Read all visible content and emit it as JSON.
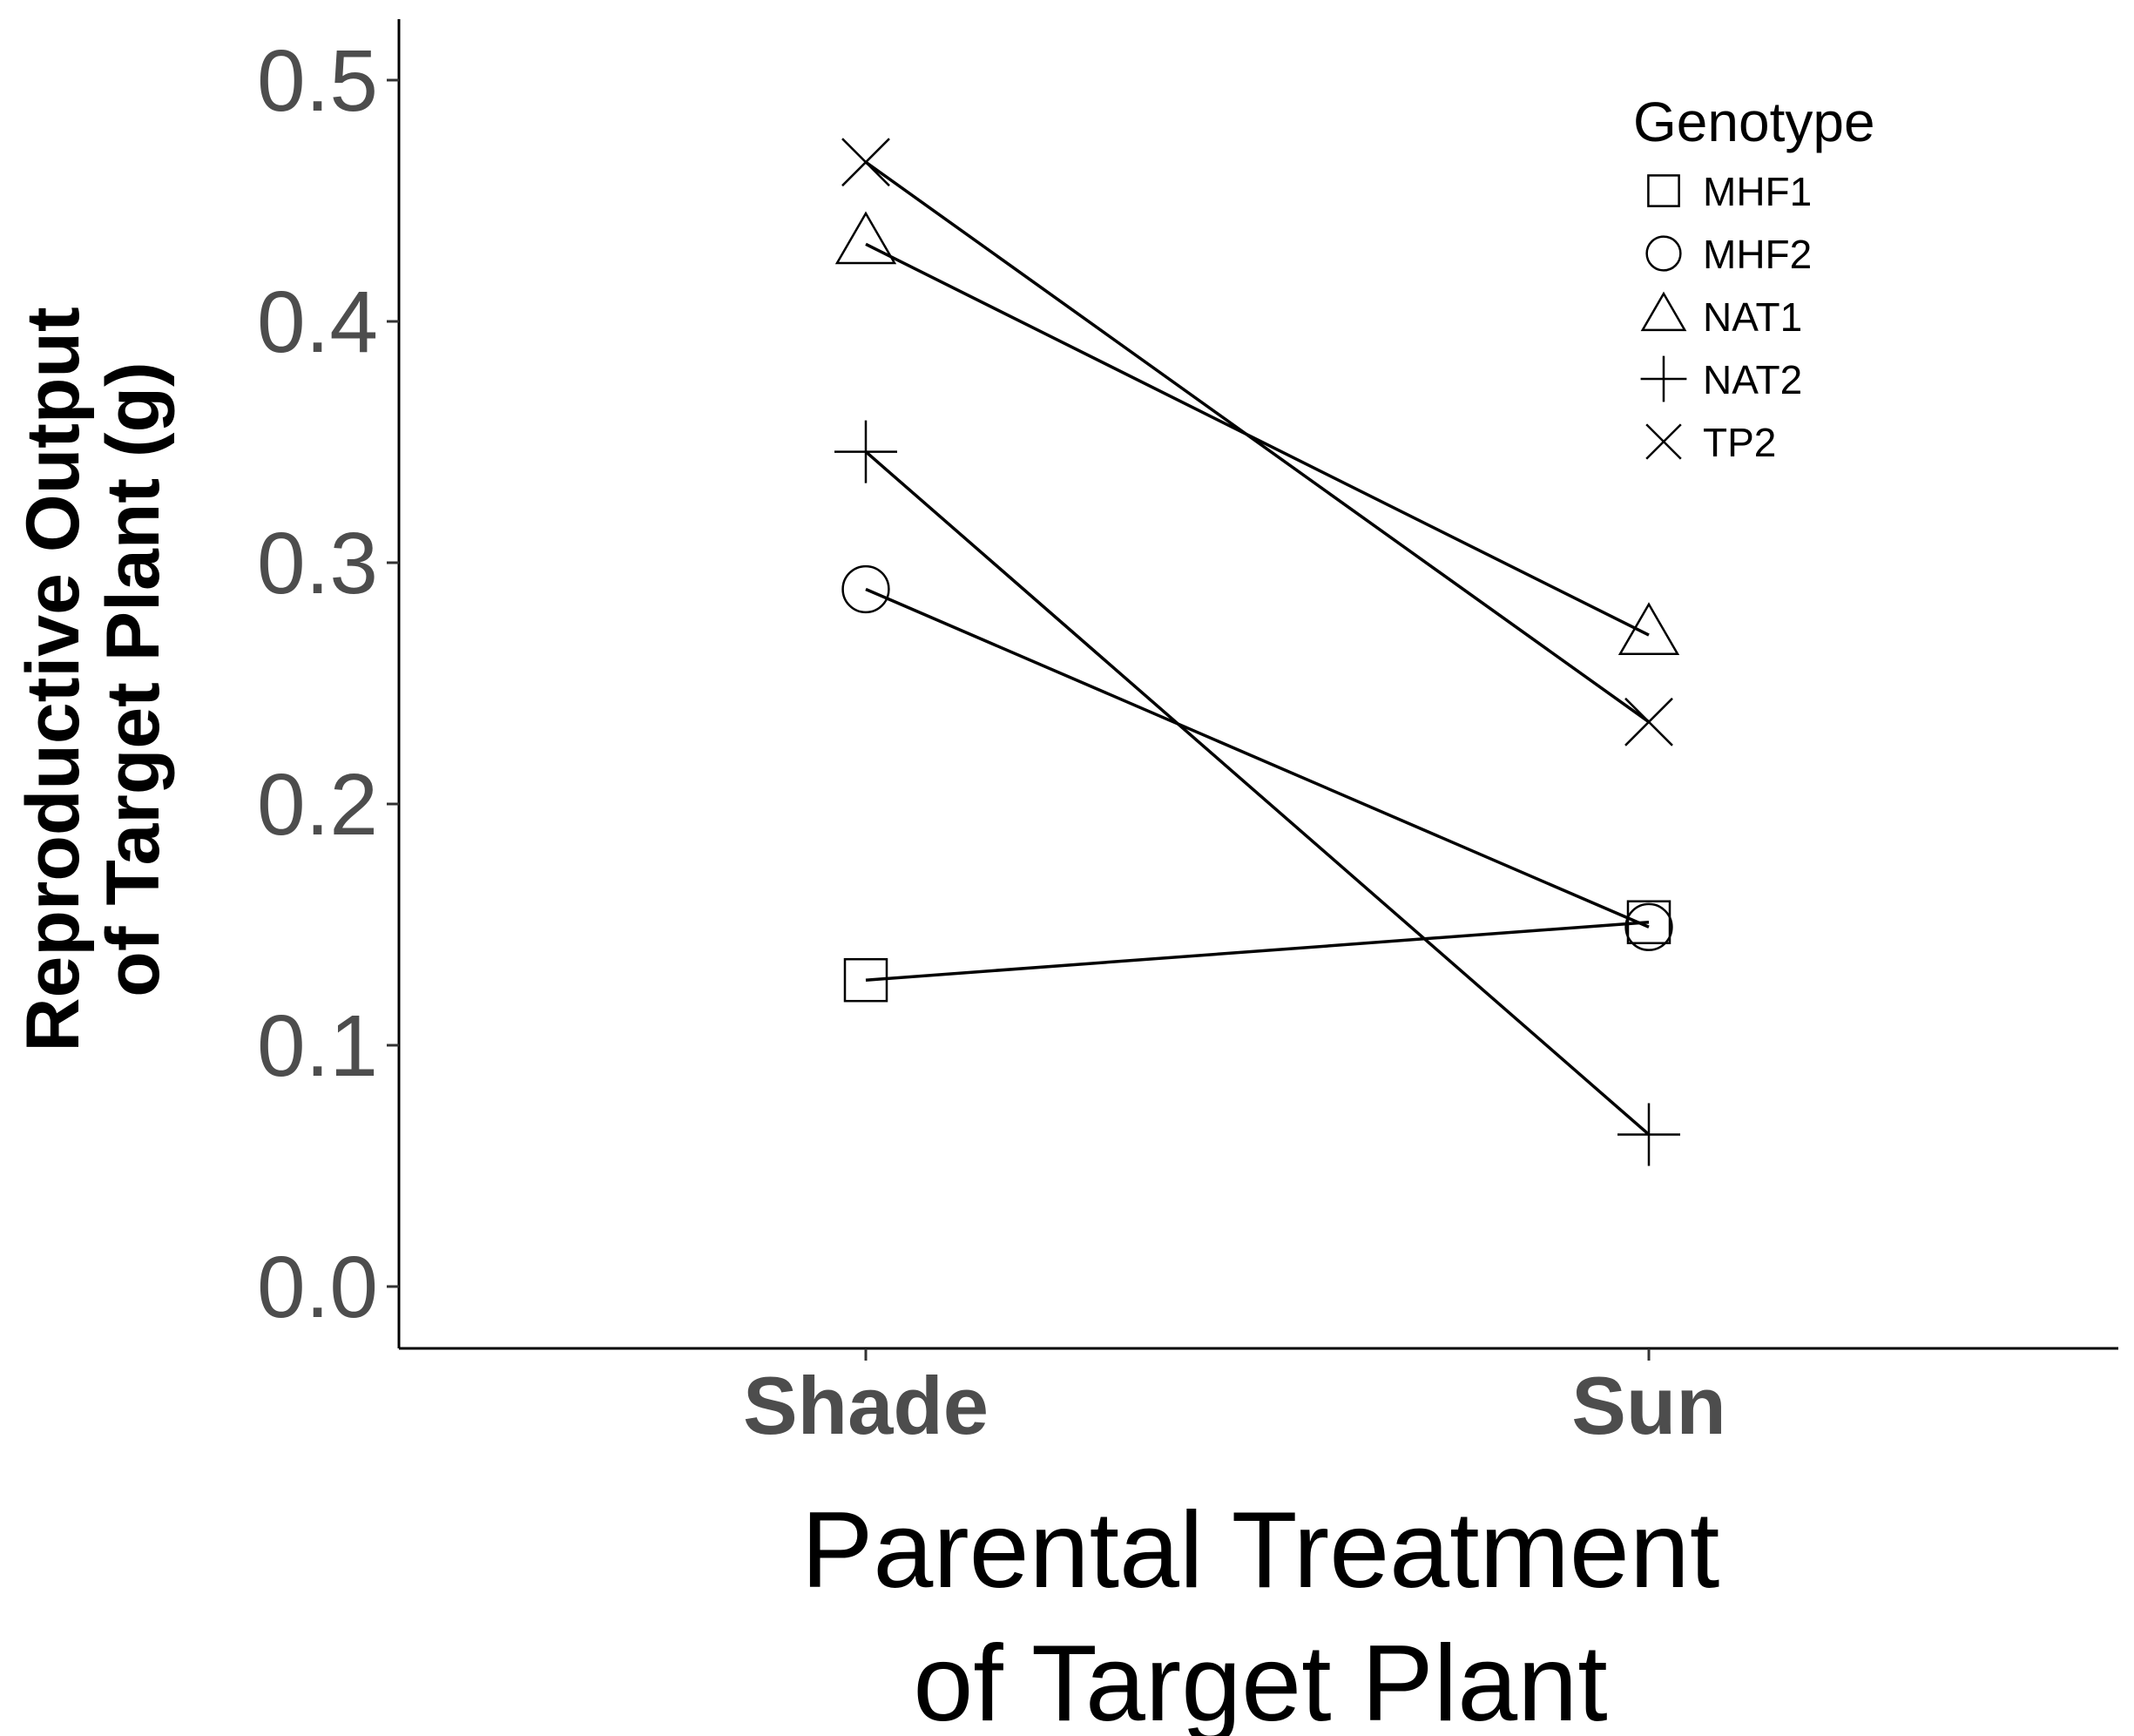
{
  "chart_data": {
    "type": "line",
    "xlabel": [
      "Parental Treatment",
      "of Target Plant"
    ],
    "ylabel": [
      "Reproductive Output",
      "of Target Plant (g)"
    ],
    "categories": [
      "Shade",
      "Sun"
    ],
    "yticks": [
      "0.0",
      "0.1",
      "0.2",
      "0.3",
      "0.4",
      "0.5"
    ],
    "ylim": [
      0,
      0.52
    ],
    "grid": false,
    "legend": {
      "title": "Genotype",
      "position": "top-right"
    },
    "series": [
      {
        "name": "MHF1",
        "shape": "square",
        "values": [
          0.127,
          0.151
        ]
      },
      {
        "name": "MHF2",
        "shape": "circle",
        "values": [
          0.289,
          0.149
        ]
      },
      {
        "name": "NAT1",
        "shape": "triangle",
        "values": [
          0.432,
          0.27
        ]
      },
      {
        "name": "NAT2",
        "shape": "plus",
        "values": [
          0.346,
          0.063
        ]
      },
      {
        "name": "TP2",
        "shape": "cross",
        "values": [
          0.466,
          0.234
        ]
      }
    ],
    "colors": {
      "line": "#000000",
      "tick_text": "#4d4d4d"
    }
  }
}
